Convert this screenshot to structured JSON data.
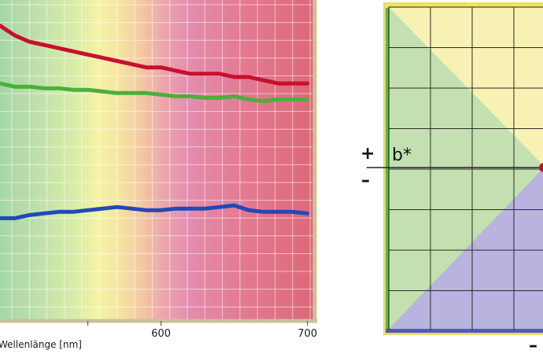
{
  "chart_data": [
    {
      "type": "line",
      "xlabel": "Wellenlänge [nm]",
      "xlim": [
        490,
        705
      ],
      "ylim": [
        0,
        100
      ],
      "x_ticks": [
        550,
        600,
        700
      ],
      "x_tick_labels": [
        "",
        "600",
        "700"
      ],
      "grid": true,
      "series": [
        {
          "color": "#c8102e",
          "x": [
            490,
            500,
            510,
            520,
            530,
            540,
            550,
            560,
            570,
            580,
            590,
            600,
            610,
            620,
            630,
            640,
            650,
            660,
            670,
            680,
            690,
            700
          ],
          "y": [
            92,
            89,
            87,
            86,
            85,
            84,
            83,
            82,
            81,
            80,
            79,
            79,
            78,
            77,
            77,
            77,
            76,
            76,
            75,
            74,
            74,
            74
          ]
        },
        {
          "color": "#4caf3a",
          "x": [
            490,
            500,
            510,
            520,
            530,
            540,
            550,
            560,
            570,
            580,
            590,
            600,
            610,
            620,
            630,
            640,
            650,
            660,
            670,
            680,
            690,
            700
          ],
          "y": [
            74,
            73,
            73,
            72.5,
            72.5,
            72,
            72,
            71.5,
            71,
            71,
            71,
            70.5,
            70,
            70,
            69.5,
            69.5,
            70,
            69,
            68.5,
            69,
            69,
            69
          ]
        },
        {
          "color": "#2148b8",
          "x": [
            490,
            500,
            510,
            520,
            530,
            540,
            550,
            560,
            570,
            580,
            590,
            600,
            610,
            620,
            630,
            640,
            650,
            660,
            670,
            680,
            690,
            700
          ],
          "y": [
            32,
            32,
            33,
            33.5,
            34,
            34,
            34.5,
            35,
            35.5,
            35,
            34.5,
            34.5,
            35,
            35,
            35,
            35.5,
            36,
            34.5,
            34,
            34,
            34,
            33.5
          ]
        }
      ]
    },
    {
      "type": "diagram",
      "axis_label": "b*",
      "plus_sign": "+",
      "minus_sign": "–",
      "bottom_sign": "–",
      "colors": {
        "yellow": "#f7f1b4",
        "green": "#c4e0b0",
        "violet": "#b8b4df",
        "grid": "#2a2a2a",
        "point": "#c8102e"
      }
    }
  ]
}
